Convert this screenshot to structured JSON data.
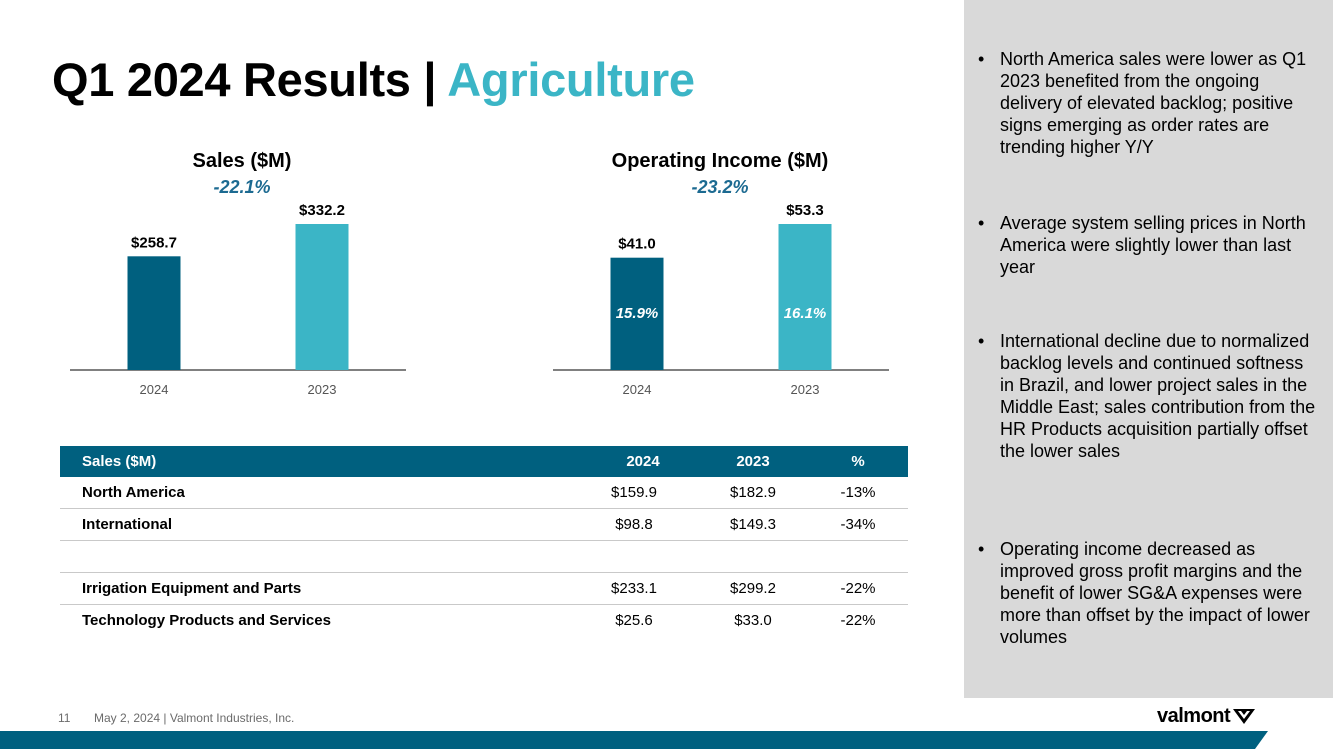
{
  "header": {
    "title_main": "Q1 2024 Results | ",
    "title_accent": "Agriculture"
  },
  "colors": {
    "accent": "#3bb5c6",
    "dark_blue": "#00607f",
    "panel_gray": "#d9d9d9",
    "change_text": "#1c6a91"
  },
  "chart_data": [
    {
      "type": "bar",
      "title": "Sales ($M)",
      "subtitle": "-22.1%",
      "categories": [
        "2024",
        "2023"
      ],
      "values": [
        258.7,
        332.2
      ],
      "data_labels": [
        "$258.7",
        "$332.2"
      ],
      "colors": [
        "#00607f",
        "#3bb5c6"
      ],
      "ylim": [
        0,
        332.2
      ]
    },
    {
      "type": "bar",
      "title": "Operating Income ($M)",
      "subtitle": "-23.2%",
      "categories": [
        "2024",
        "2023"
      ],
      "values": [
        41.0,
        53.3
      ],
      "data_labels": [
        "$41.0",
        "$53.3"
      ],
      "inner_labels": [
        "15.9%",
        "16.1%"
      ],
      "colors": [
        "#00607f",
        "#3bb5c6"
      ],
      "ylim": [
        0,
        53.3
      ]
    }
  ],
  "table": {
    "headers": [
      "Sales ($M)",
      "2024",
      "2023",
      "%"
    ],
    "rows": [
      [
        "North America",
        "$159.9",
        "$182.9",
        "-13%"
      ],
      [
        "International",
        "$98.8",
        "$149.3",
        "-34%"
      ],
      [
        "",
        "",
        "",
        ""
      ],
      [
        "Irrigation Equipment and Parts",
        "$233.1",
        "$299.2",
        "-22%"
      ],
      [
        "Technology Products and Services",
        "$25.6",
        "$33.0",
        "-22%"
      ]
    ]
  },
  "bullets": [
    "North America sales were lower as Q1 2023 benefited from the ongoing delivery of elevated backlog; positive signs emerging as order rates are trending higher Y/Y",
    "Average system selling prices in North America were slightly lower than last year",
    "International decline due to normalized backlog levels and continued softness in Brazil, and lower project sales in the Middle East; sales contribution from the HR Products acquisition partially offset the lower sales",
    "Operating income decreased as improved gross profit margins and the benefit of lower SG&A expenses were more than offset by the impact of lower volumes"
  ],
  "footer": {
    "page_number": "11",
    "date_company": "May 2, 2024  | Valmont Industries, Inc.",
    "logo_text": "valmont"
  }
}
